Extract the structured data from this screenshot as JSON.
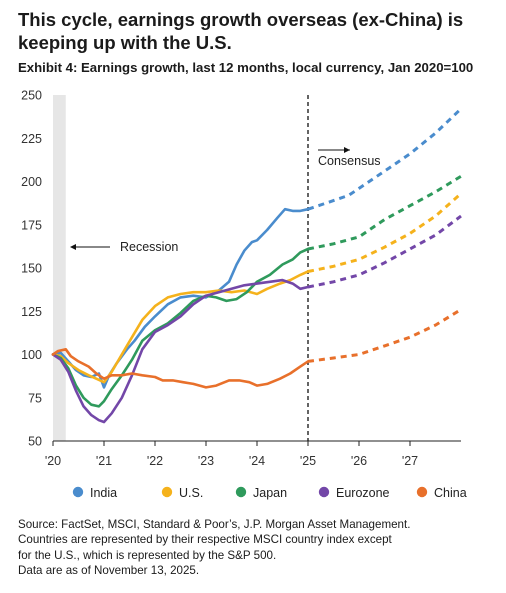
{
  "header": {
    "title_line1": "This cycle, earnings growth overseas (ex-China) is",
    "title_line2": "keeping up with the U.S.",
    "subtitle": "Exhibit 4: Earnings growth, last 12 months, local currency, Jan 2020=100"
  },
  "chart_data": {
    "type": "line",
    "title": "This cycle, earnings growth overseas (ex-China) is keeping up with the U.S.",
    "subtitle": "Exhibit 4: Earnings growth, last 12 months, local currency, Jan 2020=100",
    "x_ticks": [
      "'20",
      "'21",
      "'22",
      "'23",
      "'24",
      "'25",
      "'26",
      "'27"
    ],
    "x_range": [
      2020.0,
      2028.0
    ],
    "y_ticks": [
      50,
      75,
      100,
      125,
      150,
      175,
      200,
      225,
      250
    ],
    "ylim": [
      50,
      250
    ],
    "grid": false,
    "legend_position": "bottom",
    "annotations": {
      "recession": {
        "label": "Recession",
        "start": 2020.0,
        "end": 2020.25
      },
      "consensus": {
        "label": "Consensus",
        "divider_x": 2025.0
      }
    },
    "series": [
      {
        "name": "India",
        "color": "#4a8ccd",
        "actual": [
          [
            2020.0,
            100
          ],
          [
            2020.15,
            101
          ],
          [
            2020.3,
            96
          ],
          [
            2020.45,
            91
          ],
          [
            2020.6,
            88
          ],
          [
            2020.75,
            87
          ],
          [
            2020.9,
            89
          ],
          [
            2021.0,
            81
          ],
          [
            2021.1,
            88
          ],
          [
            2021.25,
            95
          ],
          [
            2021.45,
            103
          ],
          [
            2021.6,
            108
          ],
          [
            2021.8,
            116
          ],
          [
            2022.0,
            122
          ],
          [
            2022.25,
            129
          ],
          [
            2022.5,
            133
          ],
          [
            2022.75,
            134
          ],
          [
            2023.0,
            133
          ],
          [
            2023.25,
            137
          ],
          [
            2023.45,
            142
          ],
          [
            2023.6,
            152
          ],
          [
            2023.75,
            160
          ],
          [
            2023.9,
            165
          ],
          [
            2024.0,
            166
          ],
          [
            2024.2,
            172
          ],
          [
            2024.4,
            179
          ],
          [
            2024.55,
            184
          ],
          [
            2024.7,
            183
          ],
          [
            2024.85,
            183
          ],
          [
            2025.0,
            184
          ]
        ],
        "forecast": [
          [
            2025.0,
            184
          ],
          [
            2025.4,
            188
          ],
          [
            2025.8,
            192
          ],
          [
            2026.2,
            200
          ],
          [
            2026.6,
            208
          ],
          [
            2027.0,
            216
          ],
          [
            2027.5,
            228
          ],
          [
            2028.0,
            242
          ]
        ]
      },
      {
        "name": "U.S.",
        "color": "#f5b21c",
        "actual": [
          [
            2020.0,
            100
          ],
          [
            2020.15,
            99
          ],
          [
            2020.3,
            95
          ],
          [
            2020.5,
            91
          ],
          [
            2020.7,
            88
          ],
          [
            2020.85,
            86
          ],
          [
            2021.0,
            84
          ],
          [
            2021.15,
            90
          ],
          [
            2021.35,
            100
          ],
          [
            2021.55,
            110
          ],
          [
            2021.75,
            120
          ],
          [
            2022.0,
            128
          ],
          [
            2022.25,
            133
          ],
          [
            2022.5,
            135
          ],
          [
            2022.75,
            136
          ],
          [
            2023.0,
            136
          ],
          [
            2023.25,
            137
          ],
          [
            2023.5,
            136
          ],
          [
            2023.75,
            137
          ],
          [
            2024.0,
            135
          ],
          [
            2024.2,
            138
          ],
          [
            2024.45,
            141
          ],
          [
            2024.65,
            143
          ],
          [
            2024.85,
            146
          ],
          [
            2025.0,
            148
          ]
        ],
        "forecast": [
          [
            2025.0,
            148
          ],
          [
            2025.5,
            151
          ],
          [
            2026.0,
            155
          ],
          [
            2026.5,
            162
          ],
          [
            2027.0,
            170
          ],
          [
            2027.5,
            180
          ],
          [
            2028.0,
            193
          ]
        ]
      },
      {
        "name": "Japan",
        "color": "#2f9a5c",
        "actual": [
          [
            2020.0,
            100
          ],
          [
            2020.15,
            98
          ],
          [
            2020.3,
            92
          ],
          [
            2020.45,
            82
          ],
          [
            2020.6,
            75
          ],
          [
            2020.75,
            71
          ],
          [
            2020.9,
            70
          ],
          [
            2021.0,
            73
          ],
          [
            2021.15,
            80
          ],
          [
            2021.35,
            88
          ],
          [
            2021.55,
            97
          ],
          [
            2021.75,
            108
          ],
          [
            2022.0,
            114
          ],
          [
            2022.25,
            118
          ],
          [
            2022.5,
            124
          ],
          [
            2022.75,
            131
          ],
          [
            2023.0,
            134
          ],
          [
            2023.2,
            133
          ],
          [
            2023.4,
            131
          ],
          [
            2023.6,
            132
          ],
          [
            2023.8,
            136
          ],
          [
            2024.0,
            142
          ],
          [
            2024.25,
            146
          ],
          [
            2024.5,
            152
          ],
          [
            2024.7,
            155
          ],
          [
            2024.85,
            159
          ],
          [
            2025.0,
            161
          ]
        ],
        "forecast": [
          [
            2025.0,
            161
          ],
          [
            2025.5,
            164
          ],
          [
            2026.0,
            168
          ],
          [
            2026.5,
            178
          ],
          [
            2027.0,
            186
          ],
          [
            2027.5,
            194
          ],
          [
            2028.0,
            203
          ]
        ]
      },
      {
        "name": "Eurozone",
        "color": "#7347a8",
        "actual": [
          [
            2020.0,
            100
          ],
          [
            2020.15,
            97
          ],
          [
            2020.3,
            90
          ],
          [
            2020.45,
            79
          ],
          [
            2020.6,
            70
          ],
          [
            2020.75,
            65
          ],
          [
            2020.9,
            62
          ],
          [
            2021.0,
            61
          ],
          [
            2021.15,
            66
          ],
          [
            2021.35,
            75
          ],
          [
            2021.55,
            88
          ],
          [
            2021.75,
            103
          ],
          [
            2022.0,
            113
          ],
          [
            2022.25,
            117
          ],
          [
            2022.5,
            122
          ],
          [
            2022.75,
            129
          ],
          [
            2023.0,
            134
          ],
          [
            2023.25,
            136
          ],
          [
            2023.5,
            138
          ],
          [
            2023.75,
            140
          ],
          [
            2024.0,
            141
          ],
          [
            2024.25,
            142
          ],
          [
            2024.5,
            143
          ],
          [
            2024.7,
            141
          ],
          [
            2024.85,
            138
          ],
          [
            2025.0,
            139
          ]
        ],
        "forecast": [
          [
            2025.0,
            139
          ],
          [
            2025.5,
            142
          ],
          [
            2026.0,
            146
          ],
          [
            2026.5,
            153
          ],
          [
            2027.0,
            161
          ],
          [
            2027.5,
            169
          ],
          [
            2028.0,
            180
          ]
        ]
      },
      {
        "name": "China",
        "color": "#e8702b",
        "actual": [
          [
            2020.0,
            100
          ],
          [
            2020.1,
            102
          ],
          [
            2020.25,
            103
          ],
          [
            2020.35,
            99
          ],
          [
            2020.5,
            96
          ],
          [
            2020.7,
            93
          ],
          [
            2020.85,
            89
          ],
          [
            2021.0,
            86
          ],
          [
            2021.15,
            88
          ],
          [
            2021.35,
            88
          ],
          [
            2021.55,
            89
          ],
          [
            2021.75,
            88
          ],
          [
            2022.0,
            87
          ],
          [
            2022.15,
            85
          ],
          [
            2022.35,
            85
          ],
          [
            2022.55,
            84
          ],
          [
            2022.75,
            83
          ],
          [
            2023.0,
            81
          ],
          [
            2023.2,
            82
          ],
          [
            2023.45,
            85
          ],
          [
            2023.65,
            85
          ],
          [
            2023.85,
            84
          ],
          [
            2024.0,
            82
          ],
          [
            2024.2,
            83
          ],
          [
            2024.45,
            86
          ],
          [
            2024.65,
            89
          ],
          [
            2024.85,
            93
          ],
          [
            2025.0,
            96
          ]
        ],
        "forecast": [
          [
            2025.0,
            96
          ],
          [
            2025.5,
            98
          ],
          [
            2026.0,
            100
          ],
          [
            2026.5,
            105
          ],
          [
            2027.0,
            110
          ],
          [
            2027.5,
            117
          ],
          [
            2028.0,
            126
          ]
        ]
      }
    ]
  },
  "source": {
    "line1": "Source: FactSet, MSCI, Standard & Poor’s, J.P. Morgan Asset Management.",
    "line2": "Countries are represented by their respective MSCI country index except",
    "line3": "for the U.S., which is represented by the S&P 500.",
    "line4": "Data are as of November 13, 2025."
  }
}
